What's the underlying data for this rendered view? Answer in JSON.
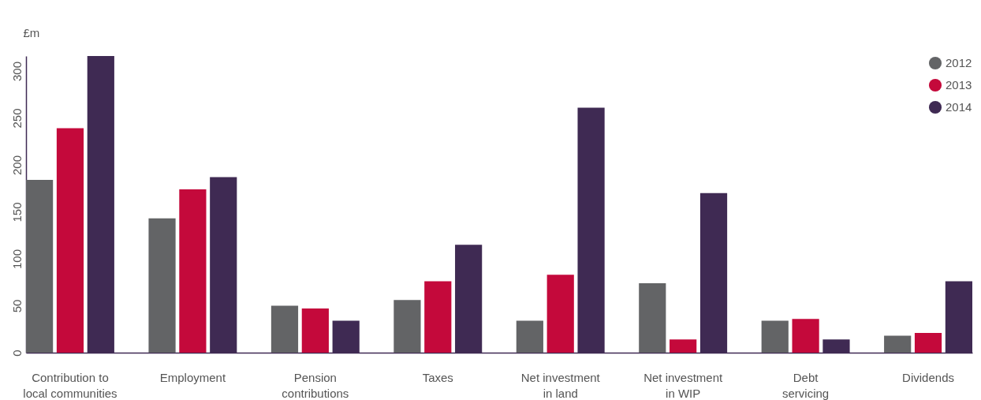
{
  "chart_data": {
    "type": "bar",
    "ylabel": "£m",
    "categories": [
      "Contribution to local communities",
      "Employment",
      "Pension contributions",
      "Taxes",
      "Net investment in land",
      "Net investment in WIP",
      "Debt servicing",
      "Dividends"
    ],
    "series": [
      {
        "name": "2012",
        "color": "#636466",
        "values": [
          184,
          143,
          50,
          56,
          34,
          74,
          34,
          18
        ]
      },
      {
        "name": "2013",
        "color": "#c4093b",
        "values": [
          239,
          174,
          47,
          76,
          83,
          14,
          36,
          21
        ]
      },
      {
        "name": "2014",
        "color": "#3f2a53",
        "values": [
          316,
          187,
          34,
          115,
          261,
          170,
          14,
          76
        ]
      }
    ],
    "ylim": [
      0,
      316
    ],
    "yticks": [
      0,
      50,
      100,
      150,
      200,
      250,
      300
    ],
    "grid": false,
    "legend": "top right"
  }
}
